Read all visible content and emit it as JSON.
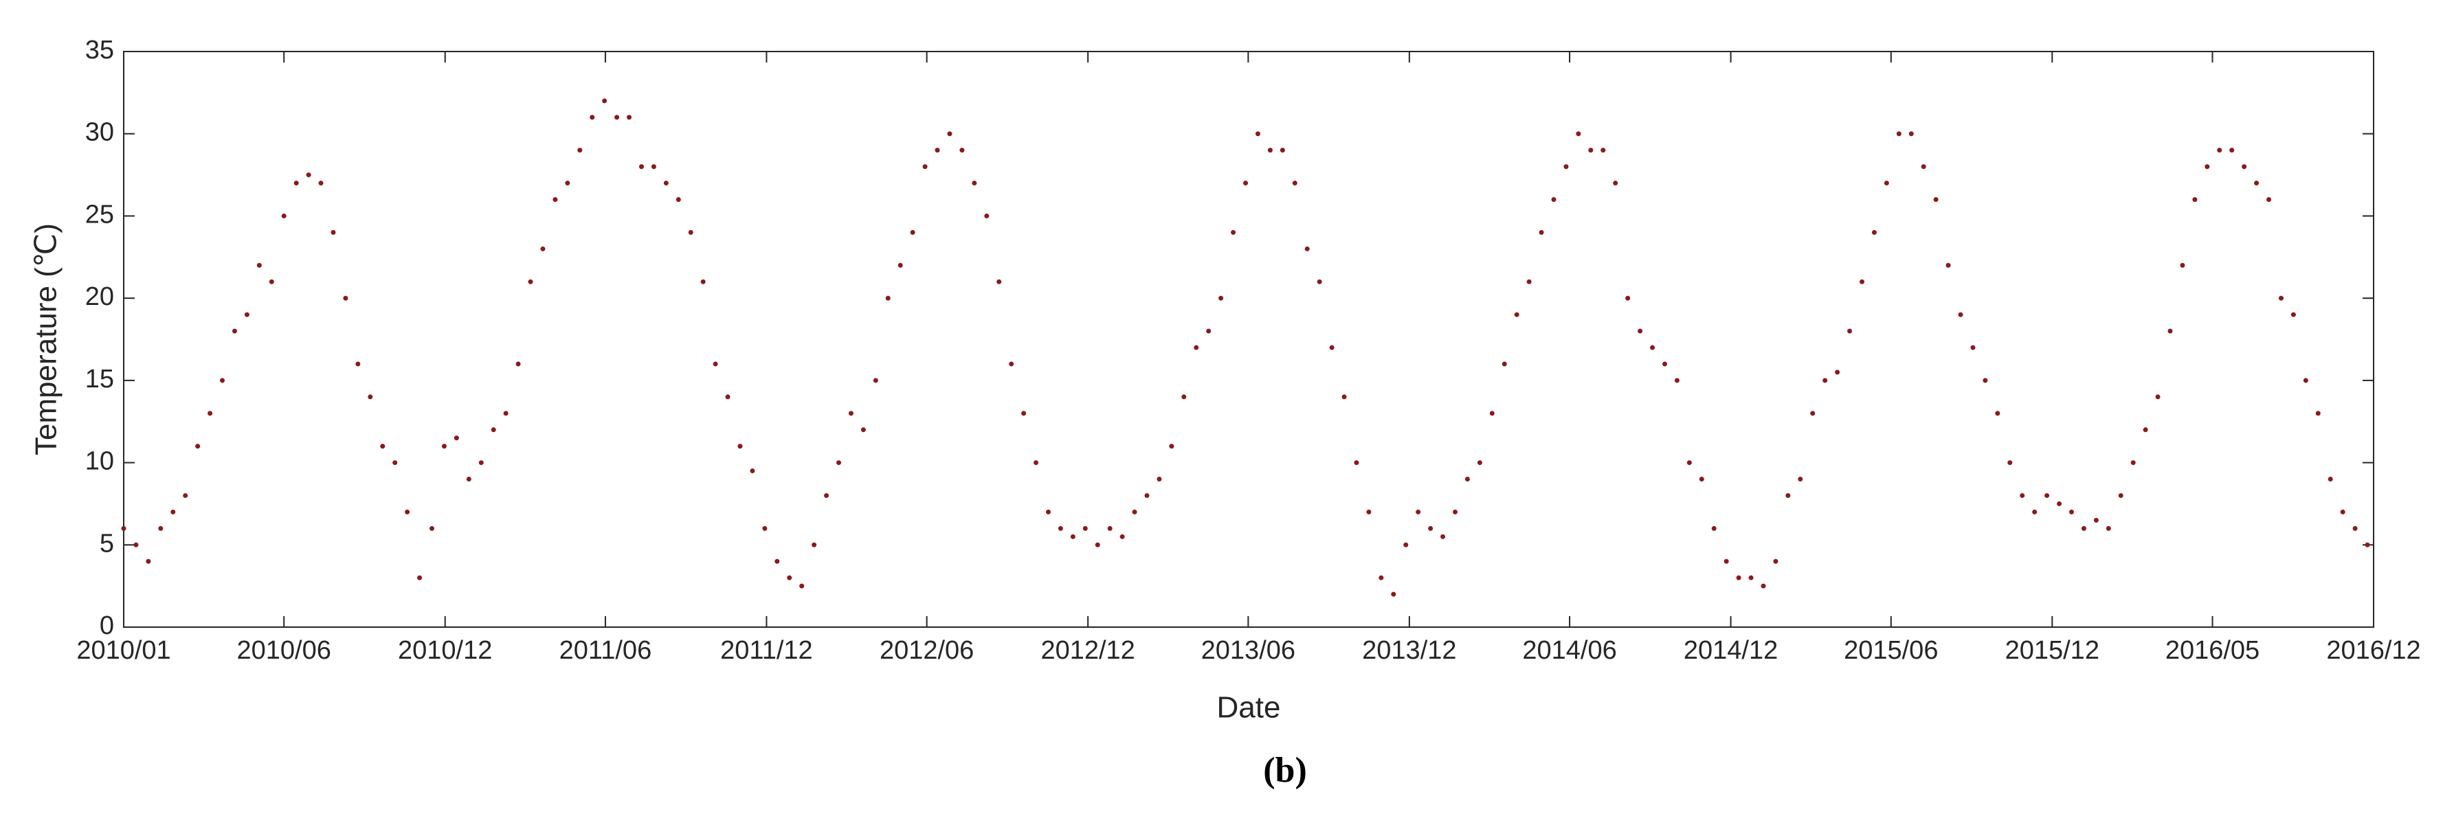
{
  "chart_data": {
    "type": "scatter",
    "x_label": "Date",
    "y_label": "Temperature (℃)",
    "caption": "(b)",
    "color": "#8b1a1a",
    "xlim": [
      0,
      2555
    ],
    "ylim": [
      0,
      35
    ],
    "xticks": [
      {
        "value": 0,
        "label": "2010/01"
      },
      {
        "value": 182,
        "label": "2010/06"
      },
      {
        "value": 365,
        "label": "2010/12"
      },
      {
        "value": 547,
        "label": "2011/06"
      },
      {
        "value": 730,
        "label": "2011/12"
      },
      {
        "value": 912,
        "label": "2012/06"
      },
      {
        "value": 1095,
        "label": "2012/12"
      },
      {
        "value": 1277,
        "label": "2013/06"
      },
      {
        "value": 1460,
        "label": "2013/12"
      },
      {
        "value": 1642,
        "label": "2014/06"
      },
      {
        "value": 1825,
        "label": "2014/12"
      },
      {
        "value": 2007,
        "label": "2015/06"
      },
      {
        "value": 2190,
        "label": "2015/12"
      },
      {
        "value": 2372,
        "label": "2016/05"
      },
      {
        "value": 2555,
        "label": "2016/12"
      }
    ],
    "yticks": [
      0,
      5,
      10,
      15,
      20,
      25,
      30,
      35
    ],
    "x": [
      0,
      14,
      28,
      42,
      56,
      70,
      84,
      98,
      112,
      126,
      140,
      154,
      168,
      182,
      196,
      210,
      224,
      238,
      252,
      266,
      280,
      294,
      308,
      322,
      336,
      350,
      364,
      378,
      392,
      406,
      420,
      434,
      448,
      462,
      476,
      490,
      504,
      518,
      532,
      546,
      560,
      574,
      588,
      602,
      616,
      630,
      644,
      658,
      672,
      686,
      700,
      714,
      728,
      742,
      756,
      770,
      784,
      798,
      812,
      826,
      840,
      854,
      868,
      882,
      896,
      910,
      924,
      938,
      952,
      966,
      980,
      994,
      1008,
      1022,
      1036,
      1050,
      1064,
      1078,
      1092,
      1106,
      1120,
      1134,
      1148,
      1162,
      1176,
      1190,
      1204,
      1218,
      1232,
      1246,
      1260,
      1274,
      1288,
      1302,
      1316,
      1330,
      1344,
      1358,
      1372,
      1386,
      1400,
      1414,
      1428,
      1442,
      1456,
      1470,
      1484,
      1498,
      1512,
      1526,
      1540,
      1554,
      1568,
      1582,
      1596,
      1610,
      1624,
      1638,
      1652,
      1666,
      1680,
      1694,
      1708,
      1722,
      1736,
      1750,
      1764,
      1778,
      1792,
      1806,
      1820,
      1834,
      1848,
      1862,
      1876,
      1890,
      1904,
      1918,
      1932,
      1946,
      1960,
      1974,
      1988,
      2002,
      2016,
      2030,
      2044,
      2058,
      2072,
      2086,
      2100,
      2114,
      2128,
      2142,
      2156,
      2170,
      2184,
      2198,
      2212,
      2226,
      2240,
      2254,
      2268,
      2282,
      2296,
      2310,
      2324,
      2338,
      2352,
      2366,
      2380,
      2394,
      2408,
      2422,
      2436,
      2450,
      2464,
      2478,
      2492,
      2506,
      2520,
      2534,
      2548
    ],
    "values": [
      6,
      5,
      4,
      6,
      7,
      8,
      11,
      13,
      15,
      18,
      19,
      22,
      21,
      25,
      27,
      27.5,
      27,
      24,
      20,
      16,
      14,
      11,
      10,
      7,
      3,
      6,
      11,
      11.5,
      9,
      10,
      12,
      13,
      16,
      21,
      23,
      26,
      27,
      29,
      31,
      32,
      31,
      31,
      28,
      28,
      27,
      26,
      24,
      21,
      16,
      14,
      11,
      9.5,
      6,
      4,
      3,
      2.5,
      5,
      8,
      10,
      13,
      12,
      15,
      20,
      22,
      24,
      28,
      29,
      30,
      29,
      27,
      25,
      21,
      16,
      13,
      10,
      7,
      6,
      5.5,
      6,
      5,
      6,
      5.5,
      7,
      8,
      9,
      11,
      14,
      17,
      18,
      20,
      24,
      27,
      30,
      29,
      29,
      27,
      23,
      21,
      17,
      14,
      10,
      7,
      3,
      2,
      5,
      7,
      6,
      5.5,
      7,
      9,
      10,
      13,
      16,
      19,
      21,
      24,
      26,
      28,
      30,
      29,
      29,
      27,
      20,
      18,
      17,
      16,
      15,
      10,
      9,
      6,
      4,
      3,
      3,
      2.5,
      4,
      8,
      9,
      13,
      15,
      15.5,
      18,
      21,
      24,
      27,
      30,
      30,
      28,
      26,
      22,
      19,
      17,
      15,
      13,
      10,
      8,
      7,
      8,
      7.5,
      7,
      6,
      6.5,
      6,
      8,
      10,
      12,
      14,
      18,
      22,
      26,
      28,
      29,
      29,
      28,
      27,
      26,
      20,
      19,
      15,
      13,
      9,
      7,
      6,
      5
    ]
  }
}
